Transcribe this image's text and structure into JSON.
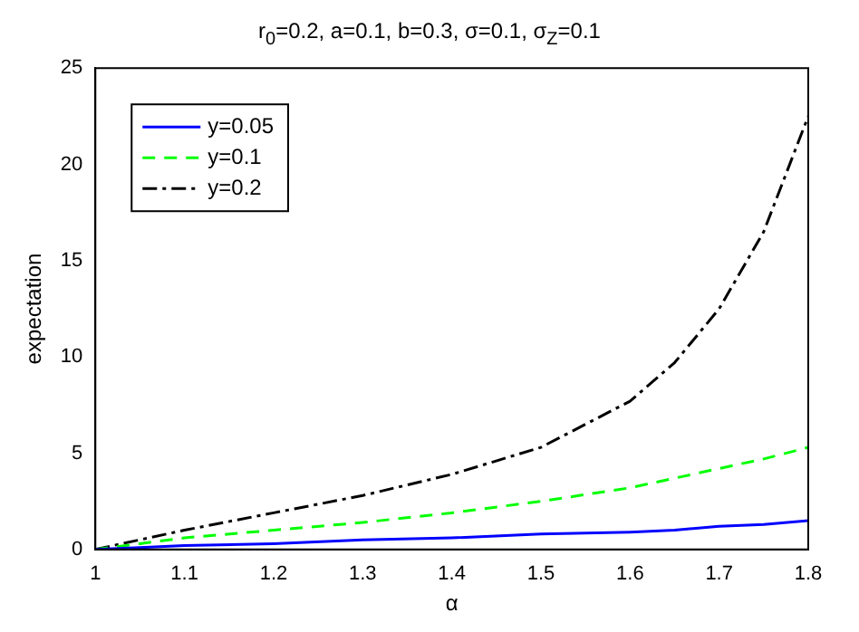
{
  "chart_data": {
    "type": "line",
    "title": "r$_{0}$=0.2, a=0.1, b=0.3, σ=0.1, σ$_{Z}$=0.1",
    "xlabel": "α",
    "ylabel": "expectation",
    "x": [
      1,
      1.05,
      1.1,
      1.2,
      1.3,
      1.4,
      1.5,
      1.6,
      1.65,
      1.7,
      1.75,
      1.8
    ],
    "series": [
      {
        "name": "y=0.05",
        "color": "#0000ff",
        "line_style": "solid",
        "values": [
          0,
          0.1,
          0.2,
          0.3,
          0.5,
          0.6,
          0.8,
          0.9,
          1.0,
          1.2,
          1.3,
          1.5
        ]
      },
      {
        "name": "y=0.1",
        "color": "#00ff00",
        "line_style": "dashed",
        "values": [
          0,
          0.3,
          0.6,
          1.0,
          1.4,
          1.9,
          2.5,
          3.2,
          3.7,
          4.2,
          4.7,
          5.3
        ]
      },
      {
        "name": "y=0.2",
        "color": "#000000",
        "line_style": "dashdot",
        "values": [
          0,
          0.5,
          1.0,
          1.9,
          2.8,
          3.9,
          5.3,
          7.7,
          9.7,
          12.5,
          16.5,
          22.5
        ]
      }
    ],
    "xlim": [
      1,
      1.8
    ],
    "xticks": [
      1,
      1.1,
      1.2,
      1.3,
      1.4,
      1.5,
      1.6,
      1.7,
      1.8
    ],
    "ylim": [
      0,
      25
    ],
    "yticks": [
      0,
      5,
      10,
      15,
      20,
      25
    ],
    "grid": false,
    "legend": "top left",
    "marker": "none"
  }
}
